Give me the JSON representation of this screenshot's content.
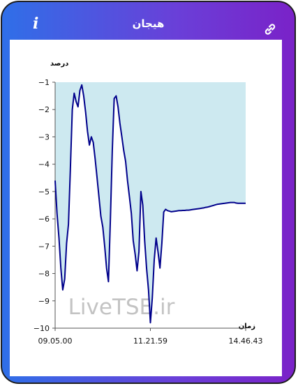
{
  "header": {
    "title": "هیجان",
    "info_icon": "info-icon",
    "link_icon": "link-icon"
  },
  "colors": {
    "frame_left": "#2f6fe8",
    "frame_right": "#7a22c8",
    "line": "#00008b",
    "area_fill": "#cde9f0"
  },
  "chart_data": {
    "type": "area",
    "ylabel": "درصد",
    "xlabel": "زمان",
    "ylim": [
      -10,
      -1
    ],
    "yticks": [
      -1,
      -2,
      -3,
      -4,
      -5,
      -6,
      -7,
      -8,
      -9,
      -10
    ],
    "x_tick_labels": [
      "09.05.00",
      "11.21.59",
      "14.46.43"
    ],
    "watermark": "LiveTSE.ir",
    "series": [
      {
        "x": [
          0,
          1,
          2,
          3,
          4,
          5,
          6,
          7,
          8,
          9,
          10,
          11,
          12,
          13,
          14,
          15,
          16,
          17,
          18,
          19,
          20,
          21,
          22,
          23,
          24,
          25,
          26,
          27,
          28,
          29,
          30,
          31,
          32,
          33,
          34,
          35,
          36,
          37,
          38,
          39,
          40,
          41,
          42,
          43,
          44,
          45,
          46,
          47,
          48,
          49,
          50,
          51,
          52,
          53,
          54,
          55,
          56,
          57,
          58,
          59,
          60,
          61,
          62,
          63,
          64,
          65,
          66,
          67,
          68,
          69,
          70,
          71,
          72,
          73,
          74,
          75,
          76,
          77,
          78,
          79,
          80,
          81,
          82,
          83,
          84,
          85,
          86,
          87,
          88,
          89,
          90,
          91,
          92,
          93,
          94,
          95,
          96,
          97,
          98,
          99,
          100
        ],
        "y": [
          -4.6,
          -5.8,
          -6.7,
          -7.8,
          -8.6,
          -8.2,
          -6.9,
          -6.2,
          -4.2,
          -2.0,
          -1.4,
          -1.7,
          -1.9,
          -1.3,
          -1.1,
          -1.5,
          -2.1,
          -2.8,
          -3.3,
          -3.0,
          -3.2,
          -3.8,
          -4.5,
          -5.2,
          -5.9,
          -6.3,
          -7.0,
          -7.8,
          -8.3,
          -6.0,
          -3.5,
          -1.6,
          -1.5,
          -1.9,
          -2.5,
          -3.0,
          -3.5,
          -3.9,
          -4.6,
          -5.2,
          -5.8,
          -6.8,
          -7.3,
          -7.9,
          -7.2,
          -5.0,
          -5.5,
          -6.8,
          -7.8,
          -8.6,
          -9.8,
          -8.9,
          -7.5,
          -6.7,
          -7.2,
          -7.8,
          -6.9,
          -5.75,
          -5.65,
          -5.7,
          -5.72,
          -5.74,
          -5.73,
          -5.72,
          -5.71,
          -5.7,
          -5.7,
          -5.69,
          -5.69,
          -5.68,
          -5.68,
          -5.67,
          -5.66,
          -5.65,
          -5.64,
          -5.63,
          -5.62,
          -5.61,
          -5.6,
          -5.58,
          -5.57,
          -5.55,
          -5.53,
          -5.51,
          -5.49,
          -5.47,
          -5.46,
          -5.45,
          -5.44,
          -5.43,
          -5.42,
          -5.41,
          -5.4,
          -5.4,
          -5.4,
          -5.42,
          -5.43,
          -5.43,
          -5.43,
          -5.43,
          -5.43
        ]
      }
    ]
  }
}
